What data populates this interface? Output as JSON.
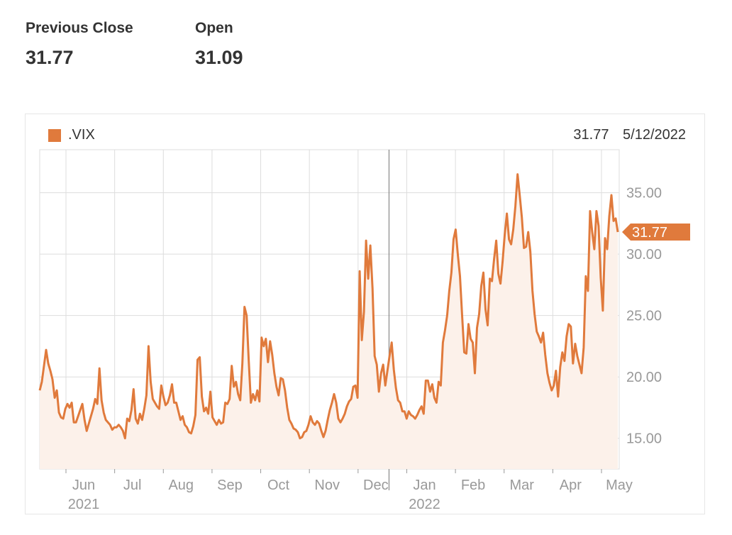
{
  "stats": [
    {
      "label": "Previous Close",
      "value": "31.77"
    },
    {
      "label": "Open",
      "value": "31.09"
    }
  ],
  "colors": {
    "line": "#e07a3c",
    "fill": "#fcf1ea",
    "grid": "#dddddd",
    "crosshair": "#888888",
    "text": "#333333",
    "axis_text": "#999999"
  },
  "readout": {
    "value": "31.77",
    "date": "5/12/2022"
  },
  "chart_data": {
    "type": "area",
    "title": "",
    "xlabel": "",
    "ylabel": "",
    "series": [
      {
        "name": ".VIX"
      }
    ],
    "y_ticks": [
      "35.00",
      "30.00",
      "25.00",
      "20.00",
      "15.00"
    ],
    "ylim": [
      12.5,
      38.5
    ],
    "x_tick_labels": [
      {
        "label": "Jun",
        "sub": "2021"
      },
      {
        "label": "Jul",
        "sub": ""
      },
      {
        "label": "Aug",
        "sub": ""
      },
      {
        "label": "Sep",
        "sub": ""
      },
      {
        "label": "Oct",
        "sub": ""
      },
      {
        "label": "Nov",
        "sub": ""
      },
      {
        "label": "Dec",
        "sub": ""
      },
      {
        "label": "Jan",
        "sub": "2022"
      },
      {
        "label": "Feb",
        "sub": ""
      },
      {
        "label": "Mar",
        "sub": ""
      },
      {
        "label": "Apr",
        "sub": ""
      },
      {
        "label": "May",
        "sub": ""
      }
    ],
    "last_value_label": "31.77",
    "values": [
      18.9,
      19.6,
      20.9,
      22.2,
      21.1,
      20.5,
      19.8,
      18.3,
      18.9,
      17.1,
      16.7,
      16.6,
      17.4,
      17.8,
      17.5,
      17.9,
      16.3,
      16.3,
      16.8,
      17.3,
      17.8,
      16.5,
      15.6,
      16.2,
      16.8,
      17.4,
      18.2,
      17.8,
      20.7,
      18.1,
      17.1,
      16.5,
      16.3,
      16.1,
      15.7,
      15.9,
      15.9,
      16.1,
      15.9,
      15.6,
      15.0,
      16.6,
      16.4,
      17.3,
      19.0,
      16.6,
      16.2,
      17.0,
      16.5,
      17.4,
      18.5,
      22.5,
      19.6,
      18.2,
      17.9,
      17.6,
      17.4,
      19.3,
      18.4,
      17.7,
      17.9,
      18.5,
      19.4,
      17.9,
      17.9,
      17.2,
      16.5,
      16.8,
      16.1,
      15.9,
      15.5,
      15.4,
      16.0,
      16.9,
      21.4,
      21.6,
      18.4,
      17.2,
      17.5,
      17.0,
      18.8,
      16.7,
      16.4,
      16.1,
      16.5,
      16.2,
      16.3,
      17.9,
      17.8,
      18.2,
      20.9,
      19.2,
      19.6,
      18.6,
      18.1,
      21.1,
      25.7,
      25.0,
      21.3,
      17.9,
      18.6,
      18.1,
      18.9,
      18.0,
      23.2,
      22.5,
      23.1,
      21.2,
      22.9,
      21.8,
      20.3,
      19.2,
      18.5,
      19.9,
      19.8,
      18.9,
      17.5,
      16.5,
      16.2,
      15.8,
      15.7,
      15.5,
      15.0,
      15.1,
      15.5,
      15.6,
      16.1,
      16.8,
      16.3,
      16.1,
      16.4,
      16.2,
      15.6,
      15.1,
      15.6,
      16.5,
      17.3,
      17.9,
      18.6,
      17.9,
      16.6,
      16.3,
      16.6,
      17.0,
      17.6,
      18.0,
      18.2,
      19.2,
      19.3,
      18.3,
      28.6,
      23.0,
      25.3,
      31.1,
      28.0,
      30.7,
      27.2,
      21.7,
      21.0,
      18.8,
      20.3,
      21.0,
      19.3,
      20.5,
      21.7,
      22.8,
      20.6,
      19.1,
      18.1,
      17.9,
      17.2,
      17.2,
      16.6,
      17.2,
      16.9,
      16.8,
      16.6,
      16.9,
      17.3,
      17.6,
      17.0,
      19.7,
      19.7,
      18.8,
      19.4,
      18.3,
      17.9,
      19.6,
      19.3,
      22.8,
      23.8,
      25.0,
      27.0,
      28.5,
      31.2,
      32.0,
      30.0,
      28.2,
      25.0,
      22.0,
      21.9,
      24.3,
      23.1,
      22.8,
      20.3,
      24.0,
      25.1,
      27.4,
      28.5,
      25.5,
      24.2,
      28.0,
      27.8,
      29.6,
      31.1,
      28.4,
      27.6,
      29.4,
      31.6,
      33.3,
      31.2,
      30.8,
      32.0,
      33.9,
      36.5,
      34.8,
      33.0,
      30.5,
      30.6,
      31.8,
      30.2,
      27.0,
      25.1,
      23.7,
      23.3,
      22.8,
      23.6,
      21.8,
      20.3,
      19.5,
      18.9,
      19.3,
      20.5,
      18.4,
      20.8,
      22.0,
      21.3,
      23.3,
      24.3,
      24.1,
      21.1,
      22.7,
      21.7,
      21.0,
      20.3,
      22.4,
      28.2,
      27.0,
      33.5,
      31.8,
      30.4,
      33.5,
      32.3,
      28.1,
      25.4,
      31.3,
      30.4,
      33.1,
      34.8,
      32.7,
      32.9,
      31.8
    ]
  }
}
